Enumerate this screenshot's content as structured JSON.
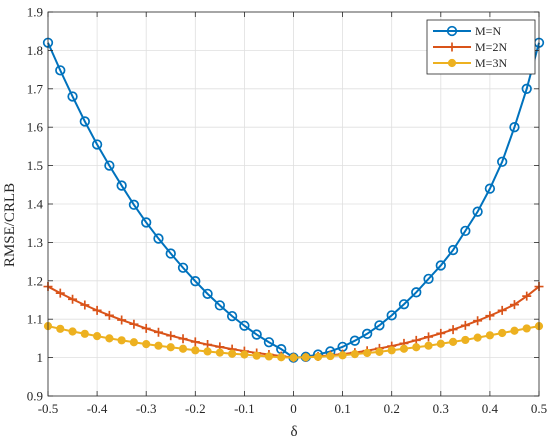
{
  "chart_data": {
    "type": "line",
    "xlabel": "δ",
    "ylabel": "RMSE/CRLB",
    "xlim": [
      -0.5,
      0.5
    ],
    "ylim": [
      0.9,
      1.9
    ],
    "x_ticks": [
      -0.5,
      -0.4,
      -0.3,
      -0.2,
      -0.1,
      0,
      0.1,
      0.2,
      0.3,
      0.4,
      0.5
    ],
    "y_ticks": [
      0.9,
      1,
      1.1,
      1.2,
      1.3,
      1.4,
      1.5,
      1.6,
      1.7,
      1.8,
      1.9
    ],
    "x_tick_labels": [
      "-0.5",
      "-0.4",
      "-0.3",
      "-0.2",
      "-0.1",
      "0",
      "0.1",
      "0.2",
      "0.3",
      "0.4",
      "0.5"
    ],
    "y_tick_labels": [
      "0.9",
      "1",
      "1.1",
      "1.2",
      "1.3",
      "1.4",
      "1.5",
      "1.6",
      "1.7",
      "1.8",
      "1.9"
    ],
    "grid": true,
    "legend_position": "top-right",
    "x": [
      -0.5,
      -0.475,
      -0.45,
      -0.425,
      -0.4,
      -0.375,
      -0.35,
      -0.325,
      -0.3,
      -0.275,
      -0.25,
      -0.225,
      -0.2,
      -0.175,
      -0.15,
      -0.125,
      -0.1,
      -0.075,
      -0.05,
      -0.025,
      0,
      0.025,
      0.05,
      0.075,
      0.1,
      0.125,
      0.15,
      0.175,
      0.2,
      0.225,
      0.25,
      0.275,
      0.3,
      0.325,
      0.35,
      0.375,
      0.4,
      0.425,
      0.45,
      0.475,
      0.5
    ],
    "series": [
      {
        "name": "M=N",
        "color": "#0072BD",
        "marker": "circle",
        "values": [
          1.82,
          1.748,
          1.68,
          1.615,
          1.555,
          1.5,
          1.448,
          1.398,
          1.352,
          1.31,
          1.271,
          1.234,
          1.199,
          1.166,
          1.136,
          1.108,
          1.083,
          1.06,
          1.04,
          1.022,
          1.0,
          1.002,
          1.008,
          1.016,
          1.028,
          1.044,
          1.062,
          1.084,
          1.11,
          1.139,
          1.17,
          1.205,
          1.24,
          1.28,
          1.33,
          1.38,
          1.44,
          1.51,
          1.6,
          1.7,
          1.82
        ]
      },
      {
        "name": "M=2N",
        "color": "#D95319",
        "marker": "plus",
        "values": [
          1.185,
          1.168,
          1.152,
          1.137,
          1.123,
          1.11,
          1.098,
          1.087,
          1.076,
          1.066,
          1.057,
          1.049,
          1.041,
          1.034,
          1.028,
          1.022,
          1.017,
          1.012,
          1.008,
          1.004,
          1.0,
          1.001,
          1.003,
          1.006,
          1.009,
          1.013,
          1.018,
          1.024,
          1.03,
          1.037,
          1.045,
          1.054,
          1.063,
          1.073,
          1.084,
          1.096,
          1.109,
          1.123,
          1.138,
          1.16,
          1.185
        ]
      },
      {
        "name": "M=3N",
        "color": "#EDB120",
        "marker": "star",
        "values": [
          1.082,
          1.075,
          1.068,
          1.062,
          1.056,
          1.05,
          1.045,
          1.04,
          1.035,
          1.031,
          1.027,
          1.023,
          1.019,
          1.016,
          1.013,
          1.01,
          1.008,
          1.005,
          1.003,
          1.001,
          1.0,
          1.001,
          1.002,
          1.004,
          1.006,
          1.009,
          1.012,
          1.015,
          1.019,
          1.023,
          1.027,
          1.031,
          1.036,
          1.041,
          1.046,
          1.052,
          1.058,
          1.064,
          1.07,
          1.076,
          1.082
        ]
      }
    ]
  }
}
